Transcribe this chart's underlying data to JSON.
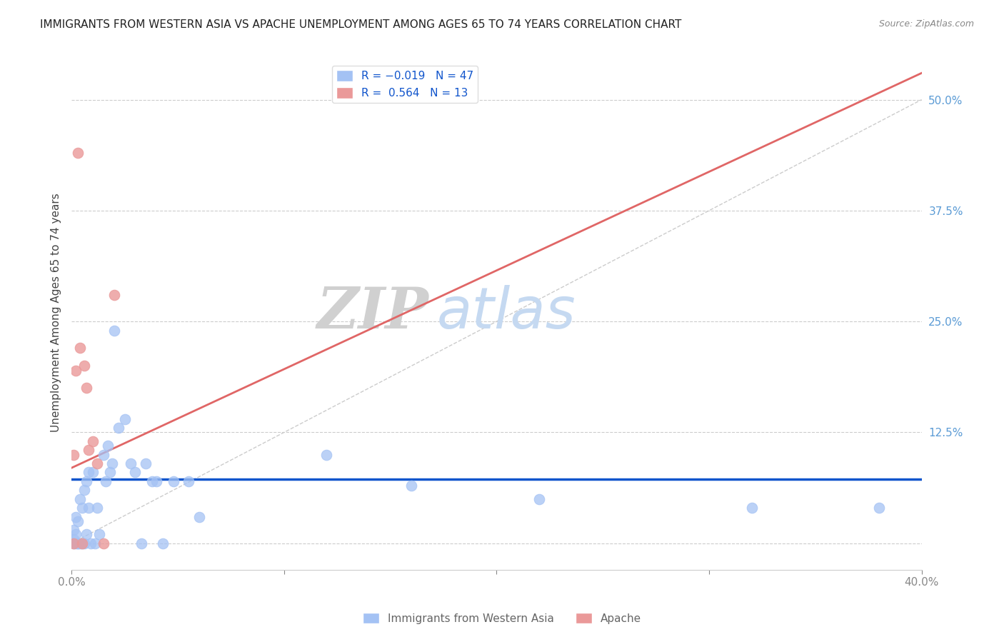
{
  "title": "IMMIGRANTS FROM WESTERN ASIA VS APACHE UNEMPLOYMENT AMONG AGES 65 TO 74 YEARS CORRELATION CHART",
  "source": "Source: ZipAtlas.com",
  "ylabel": "Unemployment Among Ages 65 to 74 years",
  "xlim": [
    0.0,
    0.4
  ],
  "ylim": [
    -0.03,
    0.55
  ],
  "blue_color": "#a4c2f4",
  "pink_color": "#ea9999",
  "blue_line_color": "#1155cc",
  "pink_line_color": "#e06666",
  "dash_color": "#cccccc",
  "legend_label_blue": "R = -0.019   N = 47",
  "legend_label_pink": "R =  0.564   N = 13",
  "legend_bottom_blue": "Immigrants from Western Asia",
  "legend_bottom_pink": "Apache",
  "r_blue": -0.019,
  "r_pink": 0.564,
  "watermark_zip": "ZIP",
  "watermark_atlas": "atlas",
  "watermark_zip_color": "#d0d0d0",
  "watermark_atlas_color": "#c5d9f1",
  "background_color": "#ffffff",
  "grid_color": "#cccccc",
  "blue_x": [
    0.001,
    0.001,
    0.001,
    0.002,
    0.002,
    0.002,
    0.003,
    0.003,
    0.003,
    0.004,
    0.004,
    0.005,
    0.005,
    0.006,
    0.006,
    0.007,
    0.007,
    0.008,
    0.008,
    0.009,
    0.01,
    0.011,
    0.012,
    0.013,
    0.015,
    0.016,
    0.017,
    0.018,
    0.019,
    0.02,
    0.022,
    0.025,
    0.028,
    0.03,
    0.033,
    0.035,
    0.038,
    0.04,
    0.043,
    0.048,
    0.055,
    0.06,
    0.12,
    0.16,
    0.22,
    0.32,
    0.38
  ],
  "blue_y": [
    0.0,
    0.015,
    0.005,
    0.0,
    0.03,
    0.01,
    0.0,
    0.025,
    0.0,
    0.0,
    0.05,
    0.0,
    0.04,
    0.0,
    0.06,
    0.01,
    0.07,
    0.04,
    0.08,
    0.0,
    0.08,
    0.0,
    0.04,
    0.01,
    0.1,
    0.07,
    0.11,
    0.08,
    0.09,
    0.24,
    0.13,
    0.14,
    0.09,
    0.08,
    0.0,
    0.09,
    0.07,
    0.07,
    0.0,
    0.07,
    0.07,
    0.03,
    0.1,
    0.065,
    0.05,
    0.04,
    0.04
  ],
  "pink_x": [
    0.001,
    0.001,
    0.002,
    0.003,
    0.004,
    0.005,
    0.006,
    0.007,
    0.008,
    0.01,
    0.012,
    0.015,
    0.02
  ],
  "pink_y": [
    0.0,
    0.1,
    0.195,
    0.44,
    0.22,
    0.0,
    0.2,
    0.175,
    0.105,
    0.115,
    0.09,
    0.0,
    0.28
  ],
  "pink_line_x0": 0.0,
  "pink_line_x1": 0.4,
  "pink_line_y0": 0.085,
  "pink_line_y1": 0.53,
  "blue_line_y": 0.072
}
